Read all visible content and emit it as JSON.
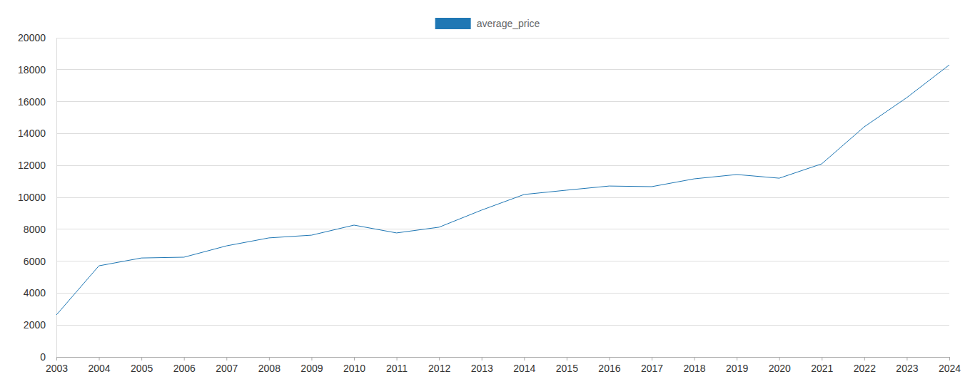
{
  "chart_data": {
    "type": "line",
    "x": [
      2003,
      2004,
      2005,
      2006,
      2007,
      2008,
      2009,
      2010,
      2011,
      2012,
      2013,
      2014,
      2015,
      2016,
      2017,
      2018,
      2019,
      2020,
      2021,
      2022,
      2023,
      2024
    ],
    "series": [
      {
        "name": "average_price",
        "color": "#1f77b4",
        "values": [
          2630,
          5710,
          6200,
          6250,
          6960,
          7460,
          7630,
          8260,
          7770,
          8130,
          9200,
          10180,
          10450,
          10710,
          10670,
          11160,
          11430,
          11200,
          12100,
          14420,
          16250,
          18300
        ]
      }
    ],
    "xlim": [
      2003,
      2024
    ],
    "xticks": [
      2003,
      2004,
      2005,
      2006,
      2007,
      2008,
      2009,
      2010,
      2011,
      2012,
      2013,
      2014,
      2015,
      2016,
      2017,
      2018,
      2019,
      2020,
      2021,
      2022,
      2023,
      2024
    ],
    "ylim": [
      0,
      20000
    ],
    "yticks": [
      0,
      2000,
      4000,
      6000,
      8000,
      10000,
      12000,
      14000,
      16000,
      18000,
      20000
    ],
    "grid": true,
    "legend": "top"
  }
}
